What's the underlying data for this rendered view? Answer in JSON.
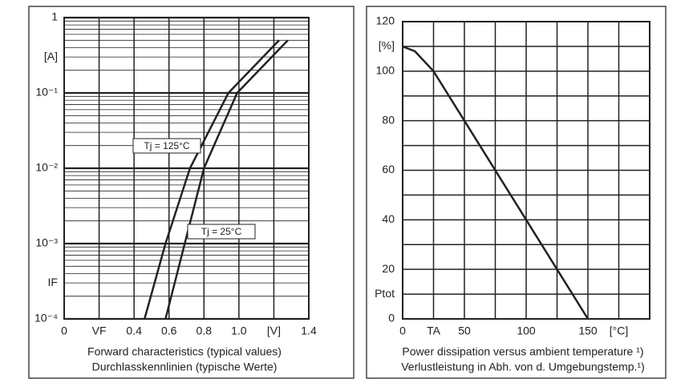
{
  "chart_data": [
    {
      "type": "line",
      "ylog": true,
      "caption": [
        "Forward characteristics (typical values)",
        "Durchlasskennlinien (typische Werte)"
      ],
      "xlim": [
        0,
        1.4
      ],
      "xticks": [
        0,
        {
          "value": 0.2,
          "label": "VF"
        },
        0.4,
        0.6,
        0.8,
        {
          "value": 1.0,
          "label": "1.0"
        },
        {
          "value": 1.2,
          "label": "[V]"
        },
        1.4
      ],
      "ylim": [
        0.0001,
        1
      ],
      "yticks": [
        {
          "value": 1,
          "label": "1"
        },
        {
          "value": 0.3,
          "label": "[A]"
        },
        {
          "value": 0.1,
          "label": "10⁻¹"
        },
        {
          "value": 0.01,
          "label": "10⁻²"
        },
        {
          "value": 0.001,
          "label": "10⁻³"
        },
        {
          "value": 0.0003,
          "label": "IF"
        },
        {
          "value": 0.0001,
          "label": "10⁻⁴"
        }
      ],
      "grid": true,
      "series": [
        {
          "name": "Tj = 125°C",
          "color": "#222222",
          "x": [
            0.46,
            0.58,
            0.72,
            0.94,
            1.23
          ],
          "values": [
            0.0001,
            0.001,
            0.01,
            0.1,
            0.5
          ]
        },
        {
          "name": "Tj = 25°C",
          "color": "#222222",
          "x": [
            0.58,
            0.69,
            0.8,
            0.99,
            1.28
          ],
          "values": [
            0.0001,
            0.001,
            0.01,
            0.1,
            0.5
          ]
        }
      ]
    },
    {
      "type": "line",
      "ylog": false,
      "caption": [
        "Power dissipation versus ambient temperature ¹)",
        "Verlustleistung in Abh. von d. Umgebungstemp.¹)"
      ],
      "xlim": [
        0,
        200
      ],
      "xticks": [
        0,
        {
          "value": 25,
          "label": "TA"
        },
        50,
        100,
        150,
        {
          "value": 175,
          "label": "[°C]"
        }
      ],
      "minor_xticks": [
        75,
        125,
        200
      ],
      "ylim": [
        0,
        120
      ],
      "yticks": [
        0,
        20,
        40,
        60,
        80,
        100,
        {
          "value": 110,
          "label": "[%]"
        },
        120,
        {
          "value": 10,
          "label": "Ptot"
        }
      ],
      "minor_yticks": [
        30,
        50,
        70,
        90
      ],
      "grid": true,
      "series": [
        {
          "color": "#222222",
          "x": [
            0,
            10,
            25,
            50,
            100,
            150
          ],
          "values": [
            110,
            108,
            100,
            80,
            40,
            0
          ]
        }
      ]
    }
  ]
}
